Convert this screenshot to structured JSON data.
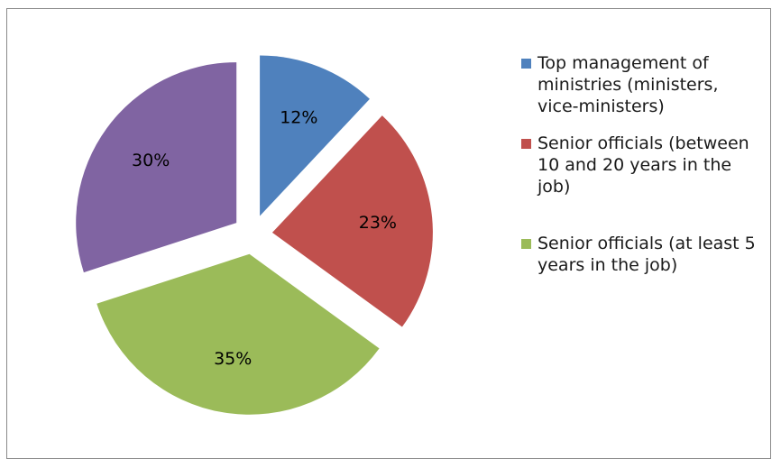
{
  "chart_data": {
    "type": "pie",
    "title": "",
    "slices": [
      {
        "label": "Top management of ministries (ministers, vice-ministers)",
        "value": 12,
        "display": "12%",
        "color": "#4f81bd"
      },
      {
        "label": "Senior officials (between 10 and 20 years in the job)",
        "value": 23,
        "display": "23%",
        "color": "#c0504d"
      },
      {
        "label": "Senior officials (at least 5 years in the job)",
        "value": 35,
        "display": "35%",
        "color": "#9bbb59"
      },
      {
        "label": "",
        "value": 30,
        "display": "30%",
        "color": "#8064a2"
      }
    ],
    "exploded": true,
    "start_angle_deg": 0,
    "direction": "clockwise",
    "legend": {
      "placement": "right",
      "entries": [
        {
          "label": "Top management of ministries (ministers, vice-ministers)",
          "color": "#4f81bd"
        },
        {
          "label": "Senior officials (between 10 and 20 years in the job)",
          "color": "#c0504d"
        },
        {
          "label": "Senior officials (at least 5 years in the job)",
          "color": "#9bbb59"
        }
      ]
    }
  }
}
